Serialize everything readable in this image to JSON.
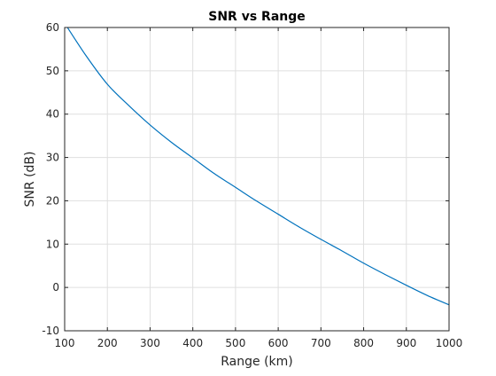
{
  "chart_data": {
    "type": "line",
    "title": "SNR vs Range",
    "xlabel": "Range (km)",
    "ylabel": "SNR (dB)",
    "xlim": [
      100,
      1000
    ],
    "ylim": [
      -10,
      60
    ],
    "xticks": [
      100,
      200,
      300,
      400,
      500,
      600,
      700,
      800,
      900,
      1000
    ],
    "yticks": [
      -10,
      0,
      10,
      20,
      30,
      40,
      50,
      60
    ],
    "xtick_labels": [
      "100",
      "200",
      "300",
      "400",
      "500",
      "600",
      "700",
      "800",
      "900",
      "1000"
    ],
    "ytick_labels": [
      "-10",
      "0",
      "10",
      "20",
      "30",
      "40",
      "50",
      "60"
    ],
    "grid": true,
    "legend": "none",
    "series": [
      {
        "color": "#0072BD",
        "x": [
          100,
          150,
          200,
          250,
          300,
          350,
          400,
          450,
          500,
          550,
          600,
          650,
          700,
          750,
          800,
          850,
          900,
          950,
          1000
        ],
        "y": [
          61.0,
          53.5,
          46.9,
          42.0,
          37.5,
          33.5,
          29.9,
          26.3,
          23.1,
          19.9,
          16.9,
          13.9,
          11.1,
          8.4,
          5.6,
          3.0,
          0.5,
          -1.9,
          -4.0
        ]
      }
    ]
  }
}
